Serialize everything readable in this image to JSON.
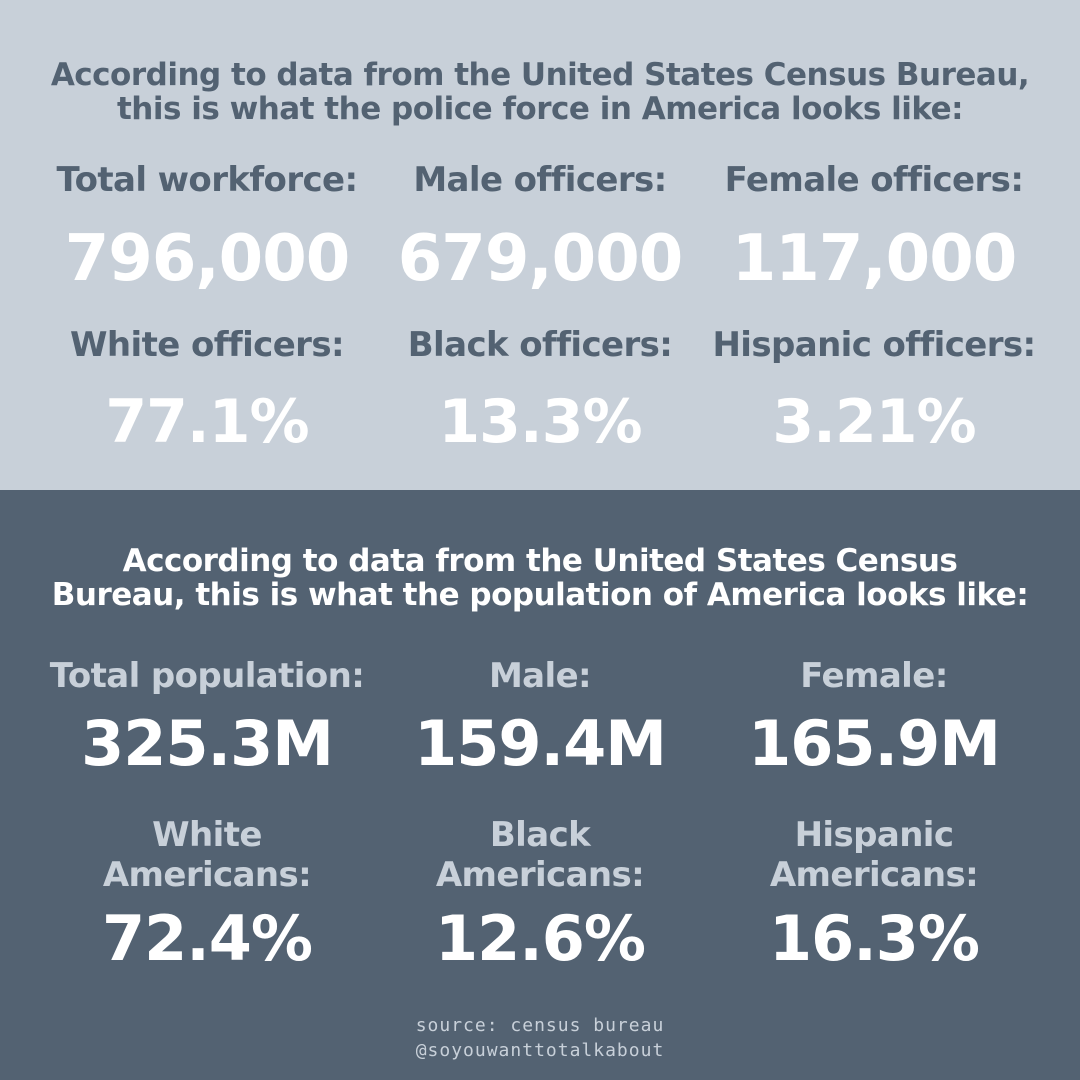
{
  "police": {
    "heading_line1": "According to data from the United States Census Bureau,",
    "heading_line2": "this is what the police force in America looks like:",
    "stats": [
      {
        "label": "Total workforce:",
        "value": "796,000"
      },
      {
        "label": "Male officers:",
        "value": "679,000"
      },
      {
        "label": "Female officers:",
        "value": "117,000"
      },
      {
        "label": "White officers:",
        "value": "77.1%"
      },
      {
        "label": "Black officers:",
        "value": "13.3%"
      },
      {
        "label": "Hispanic officers:",
        "value": "3.21%"
      }
    ]
  },
  "population": {
    "heading_line1": "According to data from the United States Census",
    "heading_line2": "Bureau, this is what the population of America looks like:",
    "stats": [
      {
        "label": "Total population:",
        "value": "325.3M"
      },
      {
        "label": "Male:",
        "value": "159.4M"
      },
      {
        "label": "Female:",
        "value": "165.9M"
      },
      {
        "label_line1": "White",
        "label_line2": "Americans:",
        "value": "72.4%"
      },
      {
        "label_line1": "Black",
        "label_line2": "Americans:",
        "value": "12.6%"
      },
      {
        "label_line1": "Hispanic",
        "label_line2": "Americans:",
        "value": "16.3%"
      }
    ]
  },
  "footer": {
    "source": "source: census bureau",
    "handle": "@soyouwanttotalkabout"
  },
  "colors": {
    "light_panel": "#c8d0d9",
    "dark_panel": "#536272",
    "value_text": "#ffffff"
  }
}
